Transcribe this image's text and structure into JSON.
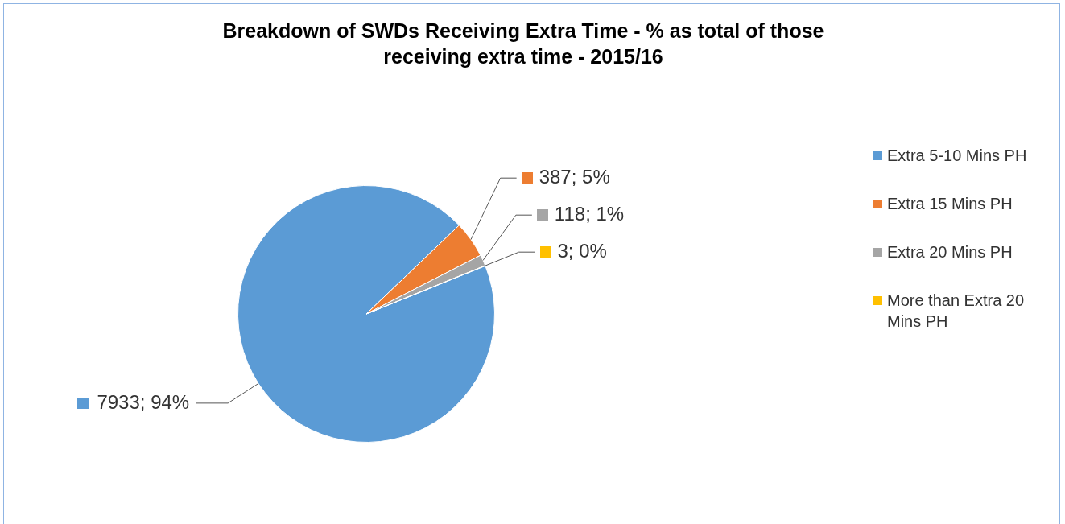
{
  "chart_data": {
    "type": "pie",
    "title": "Breakdown of SWDs Receiving Extra Time - % as total of those receiving extra time - 2015/16",
    "categories": [
      "Extra 5-10 Mins PH",
      "Extra 15 Mins PH",
      "Extra 20 Mins PH",
      "More than Extra 20 Mins PH"
    ],
    "values": [
      7933,
      387,
      118,
      3
    ],
    "colors": [
      "#5b9bd5",
      "#ed7d31",
      "#a5a5a5",
      "#ffc000"
    ],
    "value_labels": [
      "7933; 94%",
      "387; 5%",
      "118; 1%",
      "3; 0%"
    ],
    "legend": "right"
  }
}
